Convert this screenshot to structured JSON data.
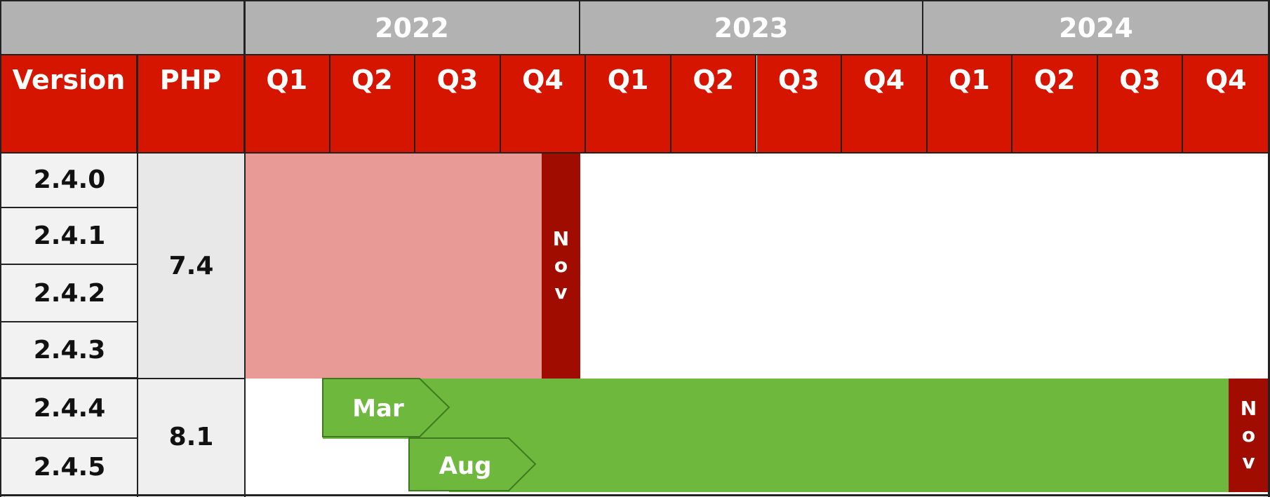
{
  "chart_data": {
    "type": "table",
    "years": [
      "2022",
      "2023",
      "2024"
    ],
    "quarters": [
      "Q1",
      "Q2",
      "Q3",
      "Q4",
      "Q1",
      "Q2",
      "Q3",
      "Q4",
      "Q1",
      "Q2",
      "Q3",
      "Q4"
    ],
    "columns": {
      "version": "Version",
      "php": "PHP"
    },
    "versions": [
      "2.4.0",
      "2.4.1",
      "2.4.2",
      "2.4.3",
      "2.4.4",
      "2.4.5"
    ],
    "php_groups": [
      {
        "php": "7.4",
        "versions": [
          "2.4.0",
          "2.4.1",
          "2.4.2",
          "2.4.3"
        ]
      },
      {
        "php": "8.1",
        "versions": [
          "2.4.4",
          "2.4.5"
        ]
      }
    ],
    "bars": [
      {
        "php": "7.4",
        "start_label": "",
        "end_label": "Nov",
        "start": "2022-01",
        "end": "2022-11",
        "color": "#e79a96"
      },
      {
        "php": "8.1",
        "start_label": "Mar",
        "end_label": "Nov",
        "start": "2022-03",
        "end": "2024-11",
        "color": "#6db83d"
      },
      {
        "php": "8.1",
        "start_label": "Aug",
        "end_label": "",
        "start": "2022-08",
        "end": "2024-11",
        "color": "#6db83d"
      }
    ],
    "colors": {
      "header": "#d61500",
      "year_header": "#b2b2b2",
      "eol": "#a00d00",
      "php_7_4_support": "#e79a96",
      "php_8_1_support": "#6db83d"
    }
  }
}
